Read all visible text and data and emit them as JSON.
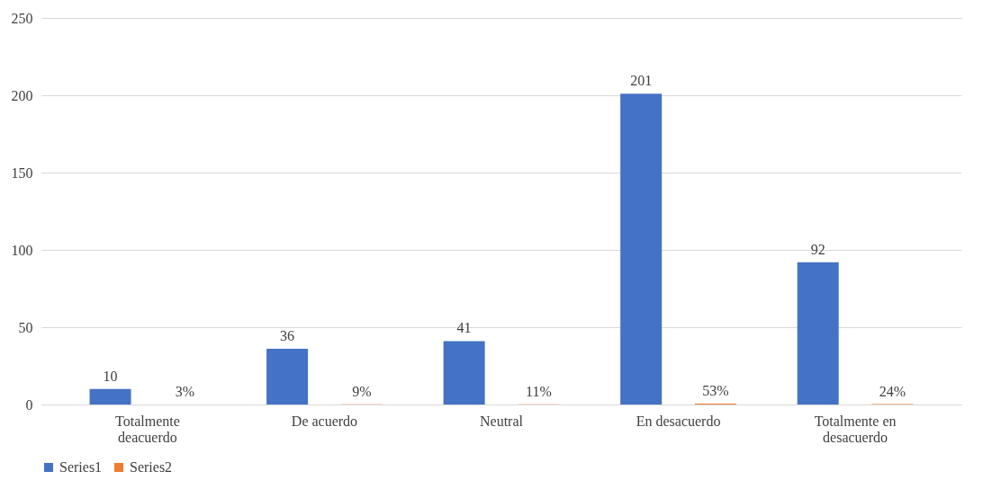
{
  "chart_data": {
    "type": "bar",
    "categories": [
      "Totalmente deacuerdo",
      "De acuerdo",
      "Neutral",
      "En desacuerdo",
      "Totalmente en desacuerdo"
    ],
    "series": [
      {
        "name": "Series1",
        "color": "#4472c4",
        "values": [
          10,
          36,
          41,
          201,
          92
        ],
        "value_labels": [
          "10",
          "36",
          "41",
          "201",
          "92"
        ]
      },
      {
        "name": "Series2",
        "color": "#ed7d31",
        "values": [
          0.03,
          0.09,
          0.11,
          0.53,
          0.24
        ],
        "value_labels": [
          "3%",
          "9%",
          "11%",
          "53%",
          "24%"
        ]
      }
    ],
    "ylim": [
      0,
      250
    ],
    "yticks": [
      0,
      50,
      100,
      150,
      200,
      250
    ],
    "grid": "y",
    "legend": "bottom"
  }
}
